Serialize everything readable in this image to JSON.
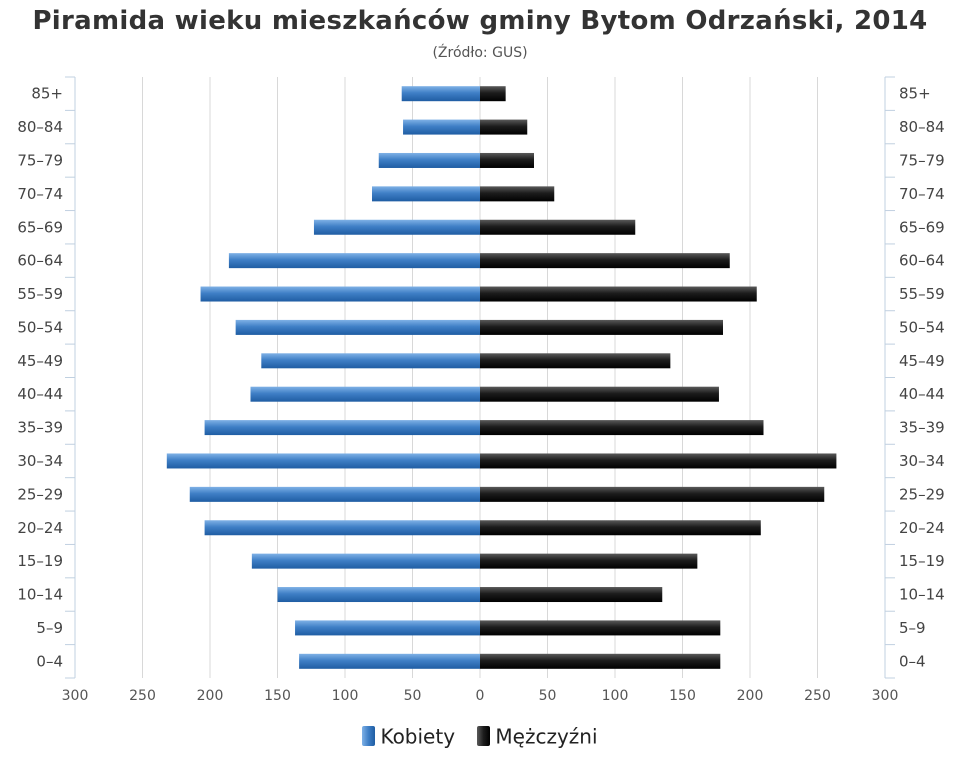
{
  "chart_data": {
    "type": "bar",
    "title": "Piramida wieku mieszkańców gminy Bytom Odrzański, 2014",
    "subtitle": "(Źródło: GUS)",
    "categories": [
      "85+",
      "80-84",
      "75-79",
      "70-74",
      "65-69",
      "60-64",
      "55-59",
      "50-54",
      "45-49",
      "40-44",
      "35-39",
      "30-34",
      "25-29",
      "20-24",
      "15-19",
      "10-14",
      "5-9",
      "0-4"
    ],
    "series": [
      {
        "name": "Kobiety",
        "color": "#3f7fc6",
        "values": [
          58,
          57,
          75,
          80,
          123,
          186,
          207,
          181,
          162,
          170,
          204,
          232,
          215,
          204,
          169,
          150,
          137,
          134
        ]
      },
      {
        "name": "Mężczyźni",
        "color": "#1a1a1a",
        "values": [
          19,
          35,
          40,
          55,
          115,
          185,
          205,
          180,
          141,
          177,
          210,
          264,
          255,
          208,
          161,
          135,
          178,
          178
        ]
      }
    ],
    "xlim": [
      -300,
      300
    ],
    "x_ticks": [
      -300,
      -250,
      -200,
      -150,
      -100,
      -50,
      0,
      50,
      100,
      150,
      200,
      250,
      300
    ],
    "x_tick_labels": [
      "300",
      "250",
      "200",
      "150",
      "100",
      "50",
      "0",
      "50",
      "100",
      "150",
      "200",
      "250",
      "300"
    ],
    "grid": true,
    "legend_position": "bottom-center"
  },
  "legend": {
    "female_label": "Kobiety",
    "male_label": "Mężczyźni"
  }
}
